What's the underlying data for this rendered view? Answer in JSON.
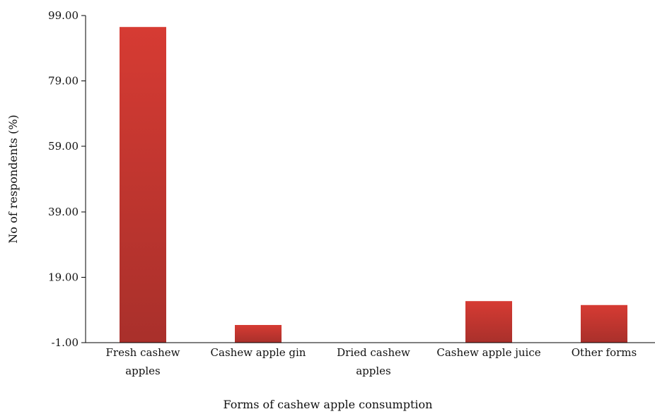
{
  "chart_data": {
    "type": "bar",
    "title": "",
    "xlabel": "Forms of cashew apple consumption",
    "ylabel": "No of respondents (%)",
    "categories": [
      [
        "Fresh cashew",
        "apples"
      ],
      [
        "Cashew apple gin"
      ],
      [
        "Dried cashew",
        "apples"
      ],
      [
        "Cashew apple juice"
      ],
      [
        "Other forms"
      ]
    ],
    "values": [
      95.5,
      4.4,
      0,
      11.7,
      10.5
    ],
    "yticks": [
      "-1.00",
      "19.00",
      "39.00",
      "59.00",
      "79.00",
      "99.00"
    ],
    "ylim": [
      -1,
      99
    ],
    "grid": false,
    "legend": "none",
    "bar_color_top": "#d63b33",
    "bar_color_bottom": "#a9302b"
  }
}
